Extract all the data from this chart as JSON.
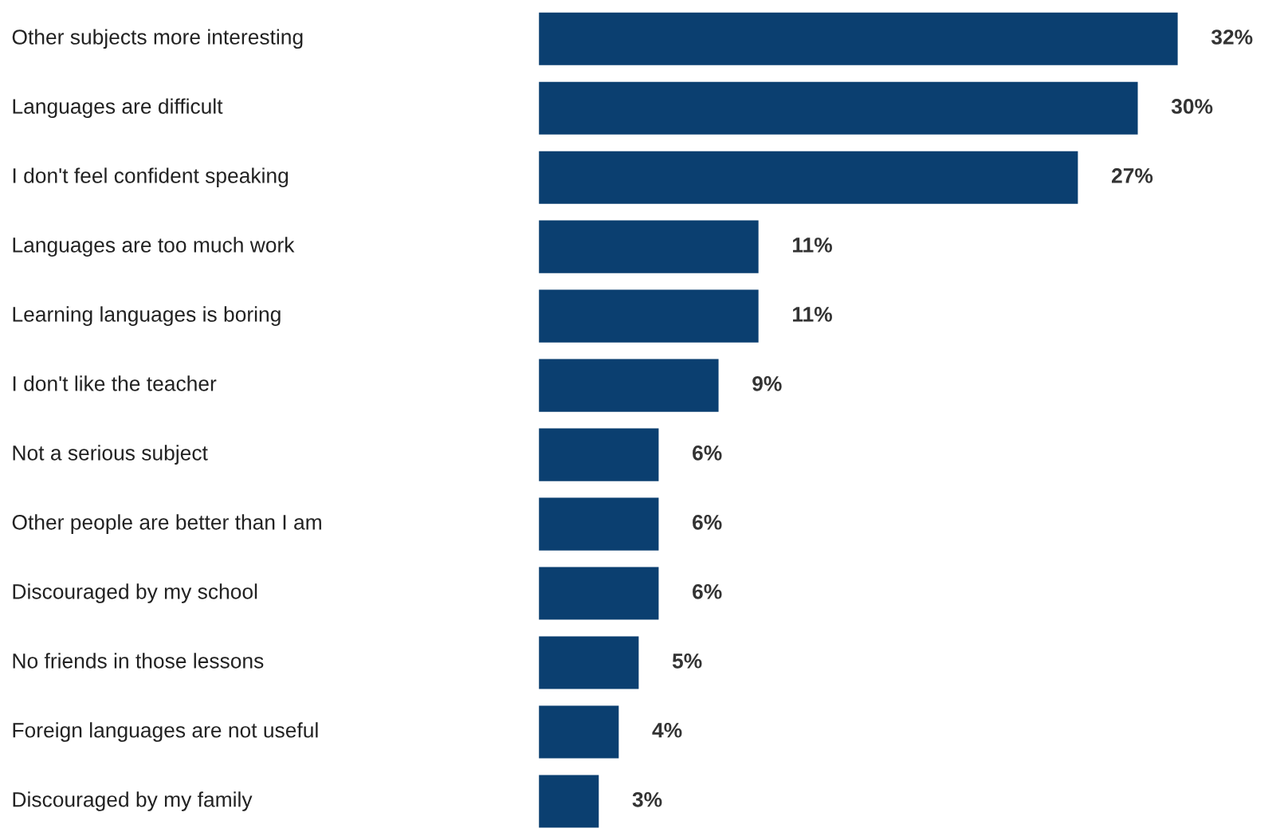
{
  "chart_data": {
    "type": "bar",
    "orientation": "horizontal",
    "categories": [
      "Other subjects more interesting",
      "Languages are difficult",
      "I don't feel confident speaking",
      "Languages are too much work",
      "Learning languages is boring",
      "I don't like the teacher",
      "Not a serious subject",
      "Other people are better than I am",
      "Discouraged by my school",
      "No friends in those lessons",
      "Foreign languages are not useful",
      "Discouraged by my family"
    ],
    "values": [
      32,
      30,
      27,
      11,
      11,
      9,
      6,
      6,
      6,
      5,
      4,
      3
    ],
    "value_labels": [
      "32%",
      "30%",
      "27%",
      "11%",
      "11%",
      "9%",
      "6%",
      "6%",
      "6%",
      "5%",
      "4%",
      "3%"
    ],
    "color": "#0b3f70",
    "legend": false
  }
}
